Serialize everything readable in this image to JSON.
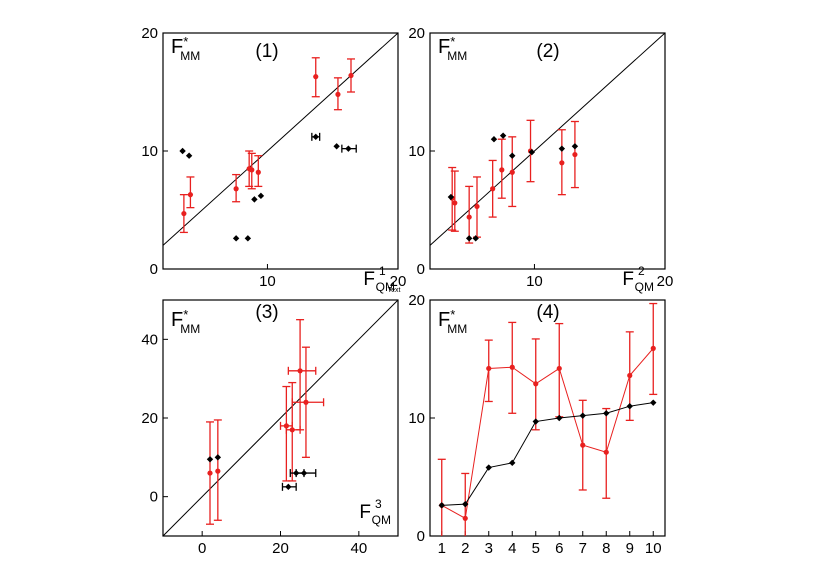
{
  "figure_text": "Text",
  "colors": {
    "red": "#e8201f",
    "black": "#000000",
    "frame": "#000000",
    "diagonal": "#000000"
  },
  "chart_data": [
    {
      "id": "p1",
      "type": "scatter",
      "panel_label": "(1)",
      "ylabel": "F*MM",
      "xlabel": "F1QM",
      "ylabel_main": "F",
      "ylabel_sup": "*",
      "ylabel_sub": "MM",
      "xlabel_main": "F",
      "xlabel_sup": "1",
      "xlabel_sub": "QM",
      "xlim": [
        2,
        20
      ],
      "ylim": [
        0,
        20
      ],
      "xticks": [
        "10",
        "20"
      ],
      "yticks": [
        "0",
        "10",
        "20"
      ],
      "diagonal": true,
      "series": [
        {
          "name": "red",
          "color": "red",
          "points": [
            {
              "x": 3.6,
              "y": 4.7,
              "ylo": 3.1,
              "yhi": 6.3
            },
            {
              "x": 4.1,
              "y": 6.3,
              "ylo": 5.2,
              "yhi": 7.8
            },
            {
              "x": 7.6,
              "y": 6.8,
              "ylo": 5.7,
              "yhi": 8.0
            },
            {
              "x": 8.6,
              "y": 8.5,
              "ylo": 7.0,
              "yhi": 10.0
            },
            {
              "x": 8.8,
              "y": 8.4,
              "ylo": 6.8,
              "yhi": 9.8
            },
            {
              "x": 9.3,
              "y": 8.2,
              "ylo": 7.0,
              "yhi": 9.6
            },
            {
              "x": 13.7,
              "y": 16.3,
              "ylo": 14.6,
              "yhi": 17.9
            },
            {
              "x": 15.4,
              "y": 14.8,
              "ylo": 13.5,
              "yhi": 16.2
            },
            {
              "x": 16.4,
              "y": 16.4,
              "ylo": 15.0,
              "yhi": 17.8
            }
          ]
        },
        {
          "name": "black",
          "color": "black",
          "points": [
            {
              "x": 3.5,
              "y": 10.0
            },
            {
              "x": 4.0,
              "y": 9.6
            },
            {
              "x": 7.6,
              "y": 2.6
            },
            {
              "x": 8.5,
              "y": 2.6
            },
            {
              "x": 9.0,
              "y": 5.9
            },
            {
              "x": 9.5,
              "y": 6.2
            },
            {
              "x": 13.7,
              "y": 11.2,
              "xlo": 13.4,
              "xhi": 14.0
            },
            {
              "x": 15.3,
              "y": 10.4
            },
            {
              "x": 16.2,
              "y": 10.2,
              "xlo": 15.7,
              "xhi": 16.8
            }
          ]
        }
      ]
    },
    {
      "id": "p2",
      "type": "scatter",
      "panel_label": "(2)",
      "ylabel": "F*MM",
      "xlabel": "F2QM",
      "ylabel_main": "F",
      "ylabel_sup": "*",
      "ylabel_sub": "MM",
      "xlabel_main": "F",
      "xlabel_sup": "2",
      "xlabel_sub": "QM",
      "xlim": [
        2,
        20
      ],
      "ylim": [
        0,
        20
      ],
      "xticks": [
        "10",
        "20"
      ],
      "yticks": [
        "0",
        "10",
        "20"
      ],
      "diagonal": true,
      "series": [
        {
          "name": "red",
          "color": "red",
          "points": [
            {
              "x": 3.7,
              "y": 6.0,
              "ylo": 3.3,
              "yhi": 8.6
            },
            {
              "x": 3.9,
              "y": 5.6,
              "ylo": 3.2,
              "yhi": 8.3
            },
            {
              "x": 5.0,
              "y": 4.4,
              "ylo": 2.2,
              "yhi": 7.0
            },
            {
              "x": 5.6,
              "y": 5.3,
              "ylo": 2.7,
              "yhi": 7.8
            },
            {
              "x": 6.8,
              "y": 6.8,
              "ylo": 4.4,
              "yhi": 9.2
            },
            {
              "x": 7.5,
              "y": 8.4,
              "ylo": 6.0,
              "yhi": 11.0
            },
            {
              "x": 8.3,
              "y": 8.2,
              "ylo": 5.3,
              "yhi": 11.2
            },
            {
              "x": 9.7,
              "y": 10.0,
              "ylo": 7.4,
              "yhi": 12.6
            },
            {
              "x": 12.1,
              "y": 9.0,
              "ylo": 6.3,
              "yhi": 11.8
            },
            {
              "x": 13.1,
              "y": 9.7,
              "ylo": 6.9,
              "yhi": 12.5
            }
          ]
        },
        {
          "name": "black",
          "color": "black",
          "points": [
            {
              "x": 3.6,
              "y": 6.1
            },
            {
              "x": 5.0,
              "y": 2.6
            },
            {
              "x": 5.5,
              "y": 2.6
            },
            {
              "x": 6.9,
              "y": 11.0
            },
            {
              "x": 7.6,
              "y": 11.3
            },
            {
              "x": 8.3,
              "y": 9.6
            },
            {
              "x": 9.8,
              "y": 9.9
            },
            {
              "x": 12.1,
              "y": 10.2
            },
            {
              "x": 13.1,
              "y": 10.4
            }
          ]
        }
      ]
    },
    {
      "id": "p3",
      "type": "scatter",
      "panel_label": "(3)",
      "ylabel": "F*MM",
      "xlabel": "F3QM",
      "ylabel_main": "F",
      "ylabel_sup": "*",
      "ylabel_sub": "MM",
      "xlabel_main": "F",
      "xlabel_sup": "3",
      "xlabel_sub": "QM",
      "xlim": [
        -10,
        50
      ],
      "ylim": [
        -10,
        50
      ],
      "xticks": [
        "0",
        "20",
        "40"
      ],
      "yticks": [
        "0",
        "20",
        "40"
      ],
      "diagonal": true,
      "series": [
        {
          "name": "red",
          "color": "red",
          "points": [
            {
              "x": 2,
              "y": 6.0,
              "ylo": -7,
              "yhi": 19
            },
            {
              "x": 4,
              "y": 6.5,
              "ylo": -6,
              "yhi": 19.5
            },
            {
              "x": 21.5,
              "y": 18,
              "ylo": 4,
              "yhi": 28,
              "xlo": 20,
              "xhi": 23
            },
            {
              "x": 23,
              "y": 17,
              "ylo": 4,
              "yhi": 29,
              "xlo": 21.5,
              "xhi": 25
            },
            {
              "x": 25,
              "y": 32,
              "ylo": 17,
              "yhi": 45,
              "xlo": 22,
              "xhi": 29
            },
            {
              "x": 26.5,
              "y": 24,
              "ylo": 10,
              "yhi": 38,
              "xlo": 23,
              "xhi": 31
            }
          ]
        },
        {
          "name": "black",
          "color": "black",
          "points": [
            {
              "x": 2,
              "y": 9.5
            },
            {
              "x": 4,
              "y": 10
            },
            {
              "x": 22,
              "y": 2.5,
              "xlo": 20.5,
              "xhi": 24
            },
            {
              "x": 24,
              "y": 6,
              "xlo": 22.5,
              "xhi": 26
            },
            {
              "x": 26,
              "y": 6,
              "xlo": 24,
              "xhi": 29
            }
          ]
        }
      ]
    },
    {
      "id": "p4",
      "type": "line",
      "panel_label": "(4)",
      "ylabel": "F*MM",
      "ylabel_main": "F",
      "ylabel_sup": "*",
      "ylabel_sub": "MM",
      "xlim": [
        0.5,
        10.5
      ],
      "ylim": [
        0,
        20
      ],
      "xticks": [
        "1",
        "2",
        "3",
        "4",
        "5",
        "6",
        "7",
        "8",
        "9",
        "10"
      ],
      "yticks": [
        "0",
        "10",
        "20"
      ],
      "diagonal": false,
      "series": [
        {
          "name": "red",
          "color": "red",
          "line": true,
          "points": [
            {
              "x": 1,
              "y": 2.6,
              "ylo": -0.5,
              "yhi": 6.5
            },
            {
              "x": 2,
              "y": 1.5,
              "ylo": -1.5,
              "yhi": 5.3
            },
            {
              "x": 3,
              "y": 14.2,
              "ylo": 11.4,
              "yhi": 16.6
            },
            {
              "x": 4,
              "y": 14.3,
              "ylo": 10.4,
              "yhi": 18.1
            },
            {
              "x": 5,
              "y": 12.9,
              "ylo": 9.0,
              "yhi": 16.7
            },
            {
              "x": 6,
              "y": 14.2,
              "ylo": 10.1,
              "yhi": 18.0
            },
            {
              "x": 7,
              "y": 7.7,
              "ylo": 3.9,
              "yhi": 11.5
            },
            {
              "x": 8,
              "y": 7.1,
              "ylo": 3.2,
              "yhi": 10.8
            },
            {
              "x": 9,
              "y": 13.6,
              "ylo": 9.8,
              "yhi": 17.3
            },
            {
              "x": 10,
              "y": 15.9,
              "ylo": 12.0,
              "yhi": 19.7
            }
          ]
        },
        {
          "name": "black",
          "color": "black",
          "line": true,
          "points": [
            {
              "x": 1,
              "y": 2.6
            },
            {
              "x": 2,
              "y": 2.7
            },
            {
              "x": 3,
              "y": 5.8
            },
            {
              "x": 4,
              "y": 6.2
            },
            {
              "x": 5,
              "y": 9.7
            },
            {
              "x": 6,
              "y": 10.0
            },
            {
              "x": 7,
              "y": 10.2
            },
            {
              "x": 8,
              "y": 10.4
            },
            {
              "x": 9,
              "y": 11.0
            },
            {
              "x": 10,
              "y": 11.3
            }
          ]
        }
      ]
    }
  ]
}
